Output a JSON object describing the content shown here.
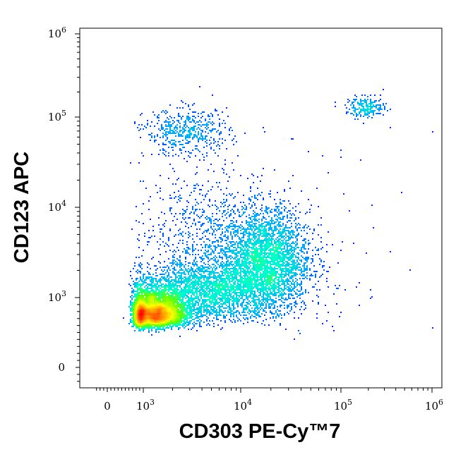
{
  "chart_data": {
    "type": "scatter",
    "title": "",
    "xlabel": "CD303 PE-Cy™7",
    "ylabel": "CD123 APC",
    "x_scale": "biexponential",
    "y_scale": "biexponential",
    "xlim": [
      -300,
      1200000
    ],
    "ylim": [
      -200,
      1200000
    ],
    "x_ticks": [
      {
        "base": "0",
        "exp": ""
      },
      {
        "base": "10",
        "exp": "3"
      },
      {
        "base": "10",
        "exp": "4"
      },
      {
        "base": "10",
        "exp": "5"
      },
      {
        "base": "10",
        "exp": "6"
      }
    ],
    "y_ticks": [
      {
        "base": "0",
        "exp": ""
      },
      {
        "base": "10",
        "exp": "3"
      },
      {
        "base": "10",
        "exp": "4"
      },
      {
        "base": "10",
        "exp": "5"
      },
      {
        "base": "10",
        "exp": "6"
      }
    ],
    "color_scale": [
      "#0000ff",
      "#00a0ff",
      "#00ffd0",
      "#60ff00",
      "#ffff00",
      "#ff9000",
      "#ff0000"
    ],
    "populations": [
      {
        "center_x": 1300,
        "center_y": 650,
        "spread_log_x": 0.17,
        "spread_log_y": 0.16,
        "events": 5200
      },
      {
        "center_x": 5000,
        "center_y": 1200,
        "spread_log_x": 0.35,
        "spread_log_y": 0.18,
        "events": 2600
      },
      {
        "center_x": 18000,
        "center_y": 2600,
        "spread_log_x": 0.22,
        "spread_log_y": 0.28,
        "events": 3200
      },
      {
        "center_x": 4500,
        "center_y": 5500,
        "spread_log_x": 0.35,
        "spread_log_y": 0.35,
        "events": 700
      },
      {
        "center_x": 2800,
        "center_y": 68000,
        "spread_log_x": 0.22,
        "spread_log_y": 0.13,
        "events": 520
      },
      {
        "center_x": 190000,
        "center_y": 130000,
        "spread_log_x": 0.11,
        "spread_log_y": 0.06,
        "events": 230
      },
      {
        "center_x": 30000,
        "center_y": 3000,
        "spread_log_x": 0.8,
        "spread_log_y": 0.8,
        "events": 90
      }
    ]
  }
}
